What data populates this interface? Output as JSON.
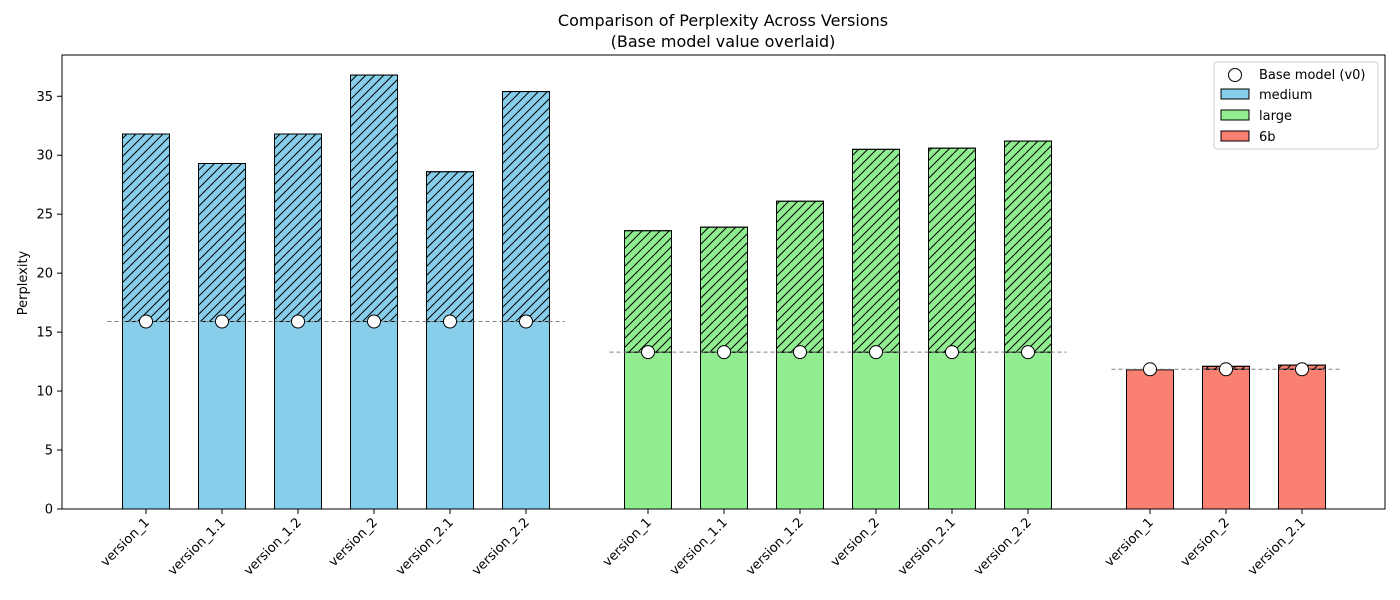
{
  "chart_data": {
    "type": "bar",
    "title": "Comparison of Perplexity Across Versions",
    "subtitle": "(Base model value overlaid)",
    "ylabel": "Perplexity",
    "xlabel": "",
    "ylim": [
      0,
      38.5
    ],
    "yticks": [
      0,
      5,
      10,
      15,
      20,
      25,
      30,
      35
    ],
    "grid": false,
    "legend_position": "top-right",
    "legend": {
      "base_model_label": "Base model (v0)",
      "entries": [
        "medium",
        "large",
        "6b"
      ]
    },
    "groups": [
      {
        "name": "medium",
        "color": "#87CEEB",
        "base_value": 15.9,
        "categories": [
          "version_1",
          "version_1.1",
          "version_1.2",
          "version_2",
          "version_2.1",
          "version_2.2"
        ],
        "values": [
          31.8,
          29.3,
          31.8,
          36.8,
          28.6,
          35.4
        ]
      },
      {
        "name": "large",
        "color": "#90EE90",
        "base_value": 13.3,
        "categories": [
          "version_1",
          "version_1.1",
          "version_1.2",
          "version_2",
          "version_2.1",
          "version_2.2"
        ],
        "values": [
          23.6,
          23.9,
          26.1,
          30.5,
          30.6,
          31.2
        ]
      },
      {
        "name": "6b",
        "color": "#FA8072",
        "base_value": 11.85,
        "categories": [
          "version_1",
          "version_2",
          "version_2.1"
        ],
        "values": [
          11.8,
          12.1,
          12.2
        ]
      }
    ]
  }
}
